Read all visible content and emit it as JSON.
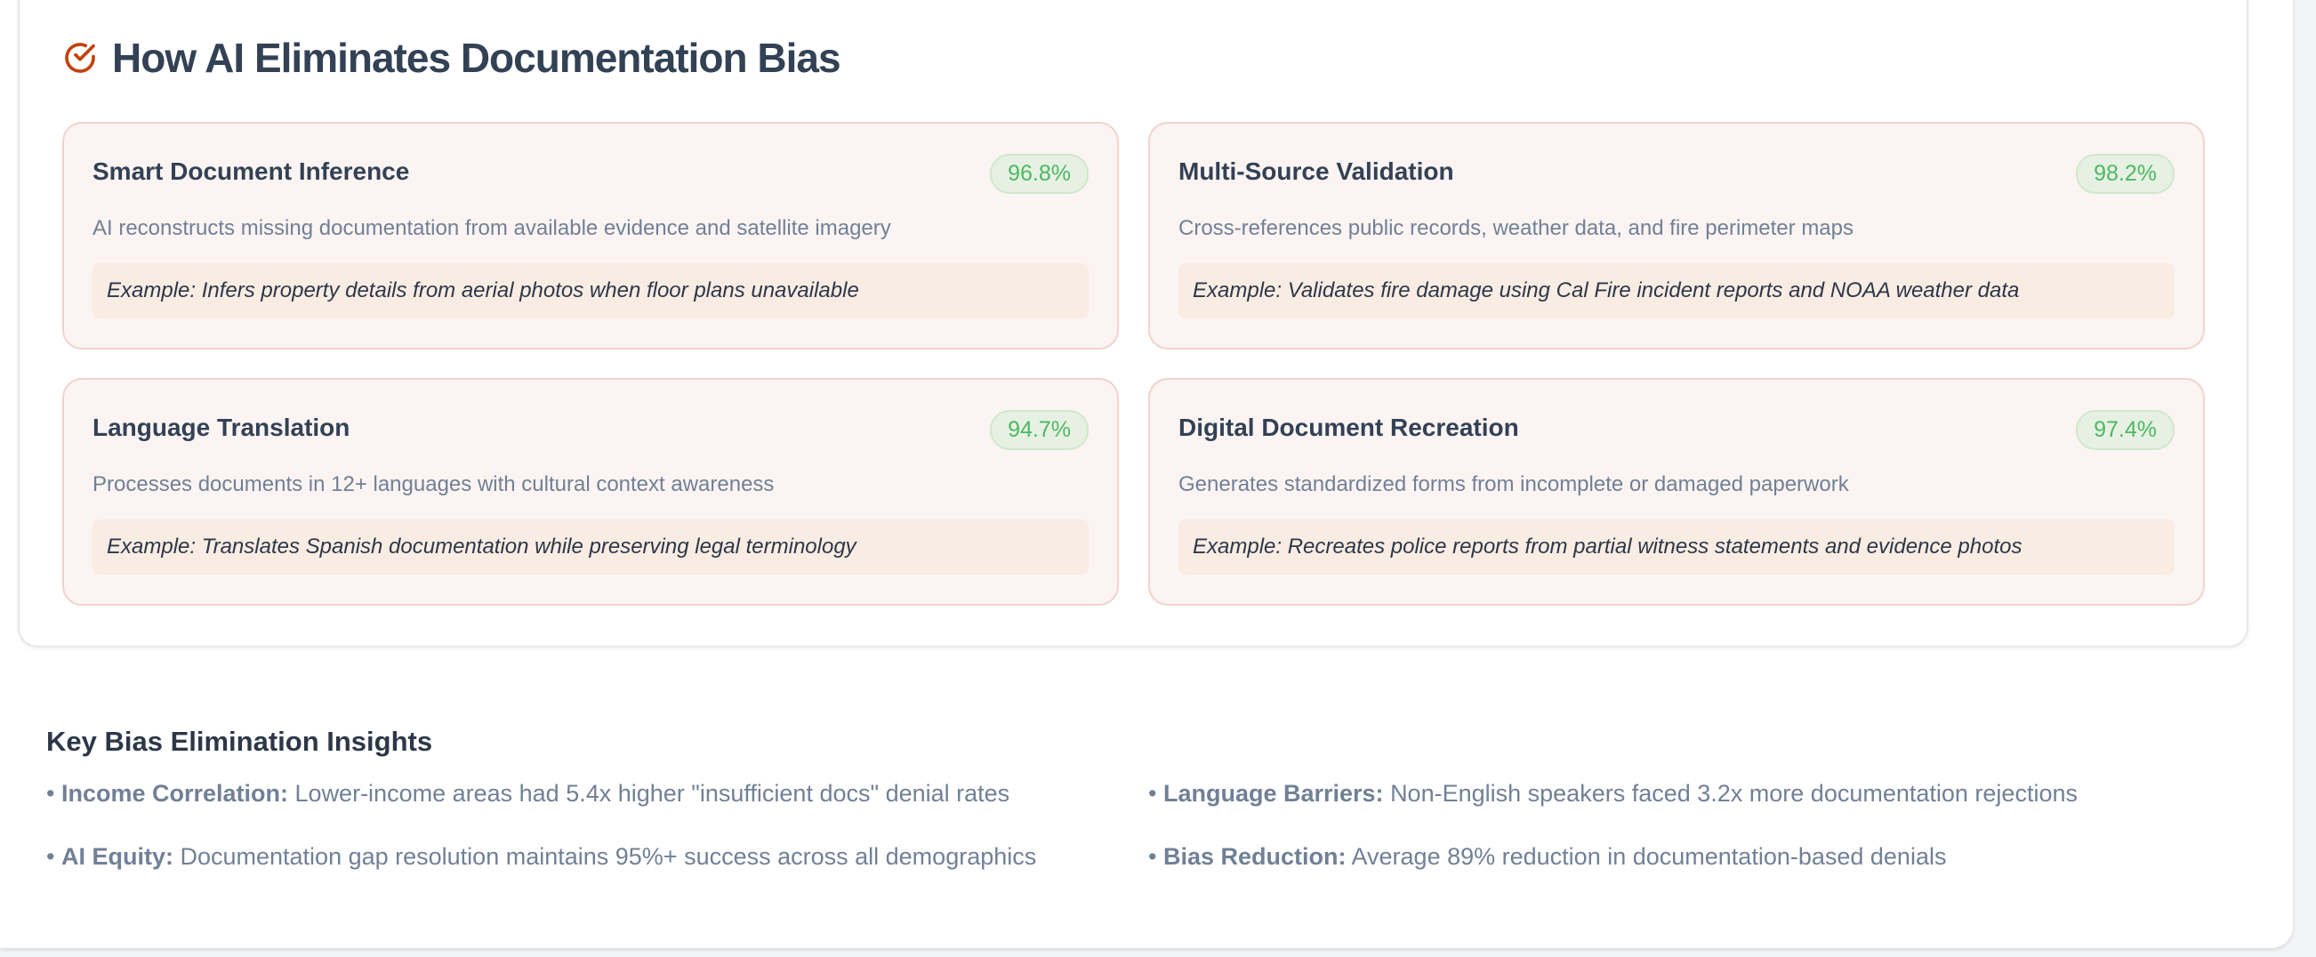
{
  "section": {
    "title": "How AI Eliminates Documentation Bias",
    "icon": "check-circle-icon",
    "accent": "#c2410c"
  },
  "cards": [
    {
      "title": "Smart Document Inference",
      "score": "96.8%",
      "description": "AI reconstructs missing documentation from available evidence and satellite imagery",
      "example": "Example: Infers property details from aerial photos when floor plans unavailable"
    },
    {
      "title": "Multi-Source Validation",
      "score": "98.2%",
      "description": "Cross-references public records, weather data, and fire perimeter maps",
      "example": "Example: Validates fire damage using Cal Fire incident reports and NOAA weather data"
    },
    {
      "title": "Language Translation",
      "score": "94.7%",
      "description": "Processes documents in 12+ languages with cultural context awareness",
      "example": "Example: Translates Spanish documentation while preserving legal terminology"
    },
    {
      "title": "Digital Document Recreation",
      "score": "97.4%",
      "description": "Generates standardized forms from incomplete or damaged paperwork",
      "example": "Example: Recreates police reports from partial witness statements and evidence photos"
    }
  ],
  "insights": {
    "title": "Key Bias Elimination Insights",
    "items": [
      {
        "label": "Income Correlation:",
        "text": "Lower-income areas had 5.4x higher \"insufficient docs\" denial rates"
      },
      {
        "label": "Language Barriers:",
        "text": "Non-English speakers faced 3.2x more documentation rejections"
      },
      {
        "label": "AI Equity:",
        "text": "Documentation gap resolution maintains 95%+ success across all demographics"
      },
      {
        "label": "Bias Reduction:",
        "text": "Average 89% reduction in documentation-based denials"
      }
    ]
  }
}
